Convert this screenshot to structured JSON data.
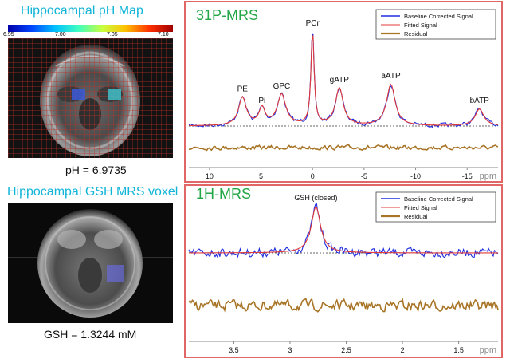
{
  "left": {
    "ph_title": "Hippocampal pH Map",
    "colorbar_ticks": [
      "6.95",
      "7.00",
      "7.05",
      "7.10"
    ],
    "ph_result": "pH = 6.9735",
    "gsh_title": "Hippocampal GSH MRS voxel",
    "gsh_result": "GSH = 1.3244 mM"
  },
  "colors": {
    "signal": "#1f2fe0",
    "fit": "#e03a3a",
    "residual": "#a87426",
    "panel_border": "#e16666",
    "title_green": "#22a646",
    "title_cyan": "#12b5d8"
  },
  "chart_data": [
    {
      "type": "line",
      "title": "31P-MRS",
      "xlabel": "ppm",
      "xlim": [
        12,
        -18
      ],
      "x_ticks": [
        10,
        5,
        0,
        -5,
        -10,
        -15
      ],
      "x_tick_labels": [
        "10",
        "5",
        "0",
        "-5",
        "-10",
        "-15"
      ],
      "legend_position": "top-right",
      "series": [
        {
          "name": "Baseline Corrected Signal"
        },
        {
          "name": "Fitted Signal"
        },
        {
          "name": "Residual"
        }
      ],
      "peak_labels": [
        "PE",
        "Pi",
        "GPC",
        "PCr",
        "gATP",
        "aATP",
        "bATP"
      ],
      "peaks_ppm": [
        6.8,
        4.9,
        3.0,
        0.0,
        -2.6,
        -7.6,
        -16.2
      ],
      "peak_heights": [
        0.3,
        0.18,
        0.33,
        1.0,
        0.4,
        0.44,
        0.18
      ]
    },
    {
      "type": "line",
      "title": "1H-MRS",
      "xlabel": "ppm",
      "xlim": [
        3.9,
        1.15
      ],
      "x_ticks": [
        3.5,
        3.0,
        2.5,
        2.0,
        1.5
      ],
      "x_tick_labels": [
        "3.5",
        "3",
        "2.5",
        "2",
        "1.5"
      ],
      "legend_position": "top-right",
      "series": [
        {
          "name": "Baseline Corrected Signal"
        },
        {
          "name": "Fitted Signal"
        },
        {
          "name": "Residual"
        }
      ],
      "peak_labels": [
        "GSH (closed)"
      ],
      "peaks_ppm": [
        2.77
      ],
      "peak_heights": [
        1.0
      ]
    }
  ]
}
